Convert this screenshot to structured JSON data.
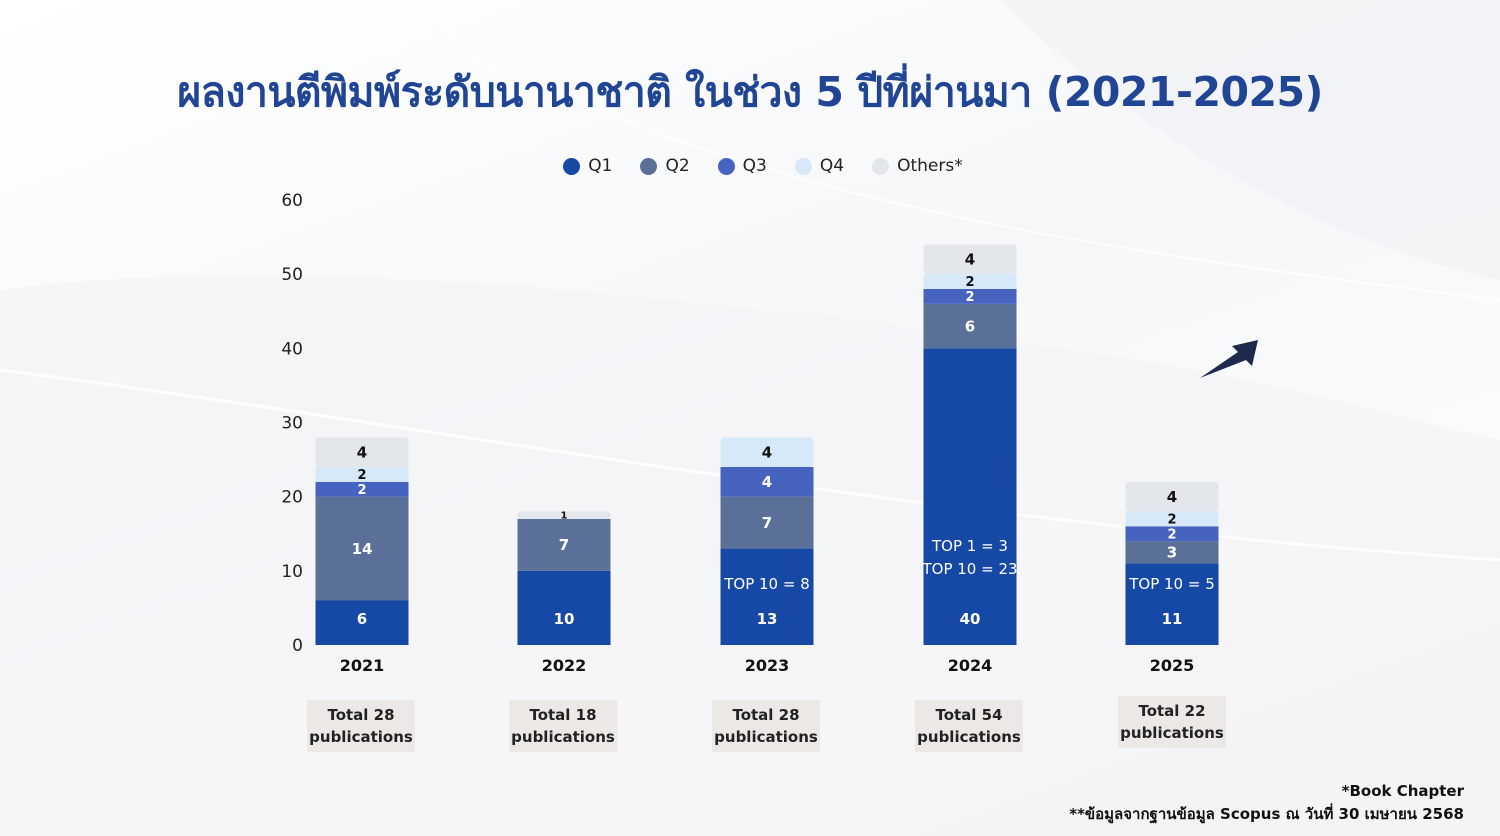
{
  "title": "ผลงานตีพิมพ์ระดับนานาชาติ ในช่วง 5 ปีที่ผ่านมา (2021-2025)",
  "colors": {
    "Q1": "#1549a5",
    "Q2": "#5a7099",
    "Q3": "#4563bf",
    "Q4": "#d7e9f8",
    "Others": "#e3e6ea",
    "title": "#1f4594",
    "arrow": "#1e2a4d"
  },
  "legend": [
    {
      "label": "Q1",
      "color": "#1549a5"
    },
    {
      "label": "Q2",
      "color": "#5a7099"
    },
    {
      "label": "Q3",
      "color": "#4563bf"
    },
    {
      "label": "Q4",
      "color": "#d7e9f8"
    },
    {
      "label": "Others*",
      "color": "#e3e6ea"
    }
  ],
  "chart_data": {
    "type": "bar",
    "stacked": true,
    "categories": [
      "2021",
      "2022",
      "2023",
      "2024",
      "2025"
    ],
    "series": [
      {
        "name": "Q1",
        "values": [
          6,
          10,
          13,
          40,
          11
        ]
      },
      {
        "name": "Q2",
        "values": [
          14,
          7,
          7,
          6,
          3
        ]
      },
      {
        "name": "Q3",
        "values": [
          2,
          0,
          4,
          2,
          2
        ]
      },
      {
        "name": "Q4",
        "values": [
          2,
          0,
          4,
          2,
          2
        ]
      },
      {
        "name": "Others*",
        "values": [
          4,
          1,
          0,
          4,
          4
        ]
      }
    ],
    "segment_labels": [
      [
        "6",
        "14",
        "2",
        "2",
        "4"
      ],
      [
        "10",
        "7",
        "",
        "",
        "1"
      ],
      [
        "13",
        "7",
        "4",
        "4",
        ""
      ],
      [
        "40",
        "6",
        "2",
        "2",
        "4"
      ],
      [
        "11",
        "3",
        "2",
        "2",
        "4"
      ]
    ],
    "annotations": [
      [],
      [],
      [
        "TOP 10 = 8"
      ],
      [
        "TOP 1 = 3",
        "TOP 10 = 23"
      ],
      [
        "TOP 10 = 5"
      ]
    ],
    "ylim": [
      0,
      60
    ],
    "yticks": [
      0,
      10,
      20,
      30,
      40,
      50,
      60
    ],
    "grid": false,
    "legend_position": "top-center",
    "xlabel": "",
    "ylabel": ""
  },
  "totals": [
    {
      "line1": "Total 28",
      "line2": "publications"
    },
    {
      "line1": "Total 18",
      "line2": "publications"
    },
    {
      "line1": "Total 28",
      "line2": "publications"
    },
    {
      "line1": "Total 54",
      "line2": "publications"
    },
    {
      "line1": "Total 22",
      "line2": "publications"
    }
  ],
  "footnotes": {
    "line1": "*Book Chapter",
    "line2": "**ข้อมูลจากฐานข้อมูล Scopus ณ วันที่ 30 เมษายน 2568"
  },
  "trend_icon": "trend-arrow-icon"
}
